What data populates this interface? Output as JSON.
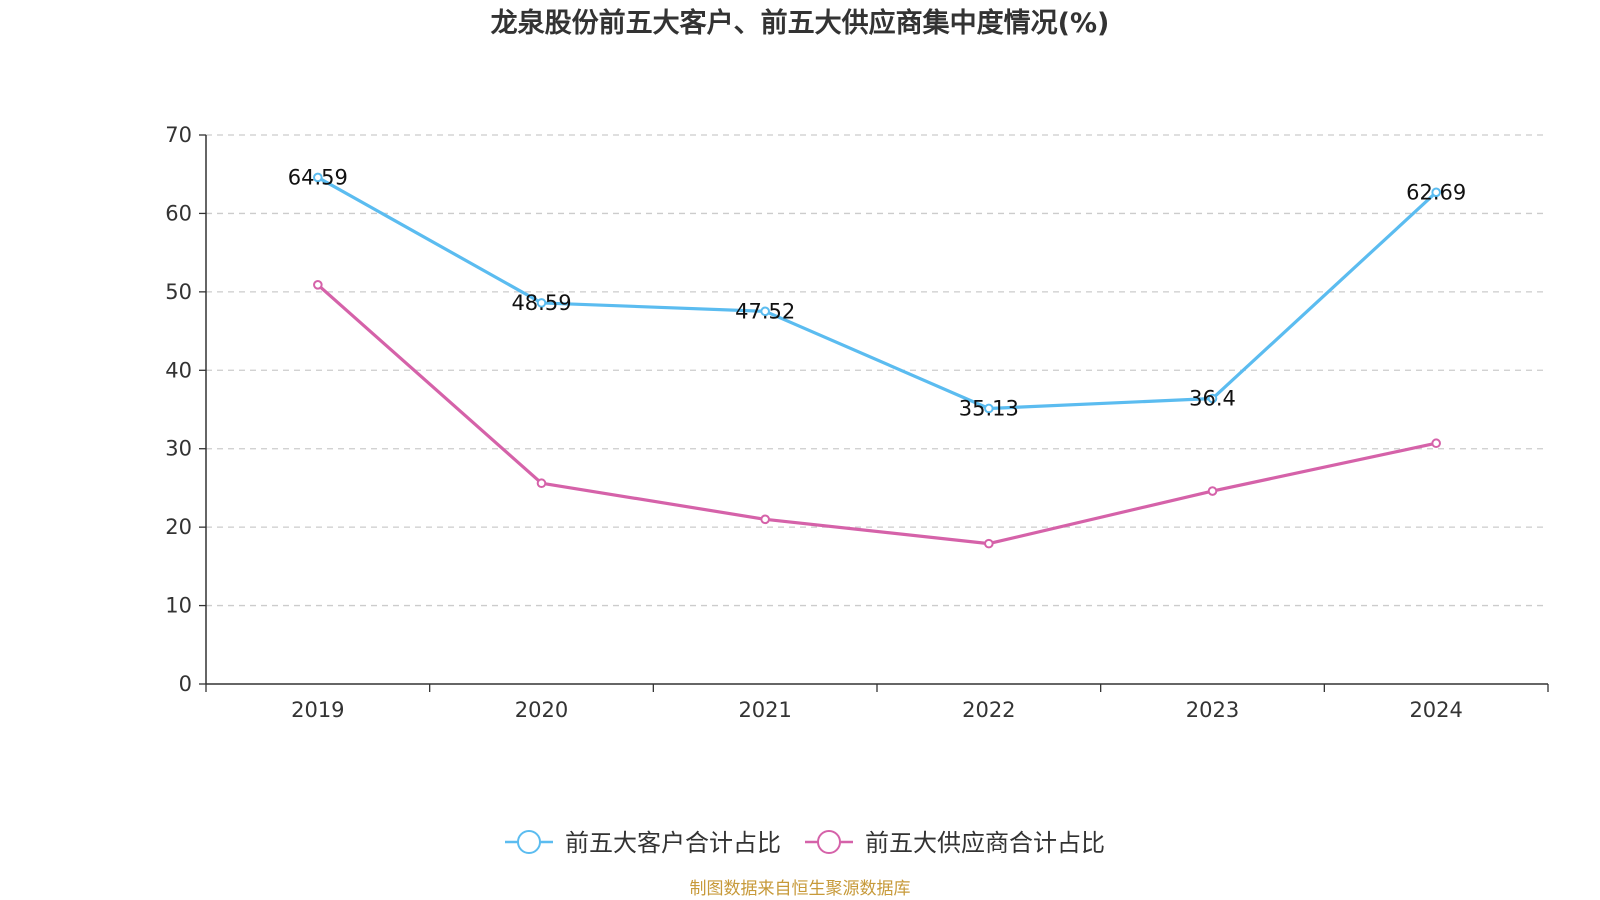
{
  "chart_data": {
    "type": "line",
    "title": "龙泉股份前五大客户、前五大供应商集中度情况(%)",
    "categories": [
      "2019",
      "2020",
      "2021",
      "2022",
      "2023",
      "2024"
    ],
    "ylim": [
      0,
      70
    ],
    "yticks": [
      0,
      10,
      20,
      30,
      40,
      50,
      60,
      70
    ],
    "grid": true,
    "legend_position": "bottom-center",
    "series": [
      {
        "name": "前五大客户合计占比",
        "color": "#5bbcf0",
        "values": [
          64.59,
          48.59,
          47.52,
          35.13,
          36.4,
          62.69
        ],
        "labels": [
          "64.59",
          "48.59",
          "47.52",
          "35.13",
          "36.4",
          "62.69"
        ],
        "show_labels": true
      },
      {
        "name": "前五大供应商合计占比",
        "color": "#d562a9",
        "values": [
          50.9,
          25.6,
          21.0,
          17.9,
          24.6,
          30.7
        ],
        "show_labels": false
      }
    ]
  },
  "source": {
    "text": "制图数据来自恒生聚源数据库",
    "color": "#c79a3a"
  }
}
